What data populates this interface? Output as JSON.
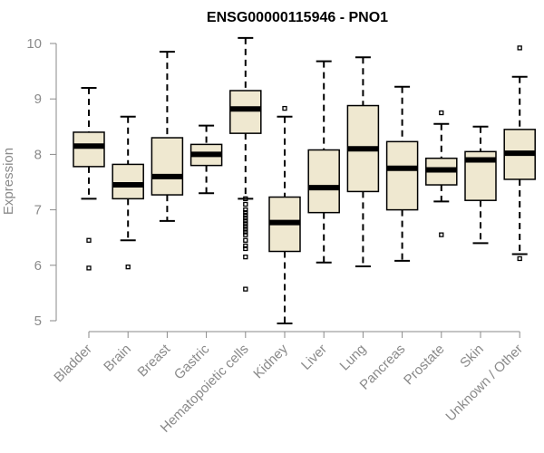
{
  "chart_data": {
    "type": "boxplot",
    "title": "ENSG00000115946 - PNO1",
    "xlabel": "",
    "ylabel": "Expression",
    "ylim": [
      5,
      10
    ],
    "yticks": [
      5,
      6,
      7,
      8,
      9,
      10
    ],
    "grid": false,
    "colors": {
      "box_fill": "#efe8d0",
      "stroke": "#000000",
      "axis": "#8a8a8a"
    },
    "categories": [
      "Bladder",
      "Brain",
      "Breast",
      "Gastric",
      "Hematopoietic cells",
      "Kidney",
      "Liver",
      "Lung",
      "Pancreas",
      "Prostate",
      "Skin",
      "Unknown / Other"
    ],
    "boxes": [
      {
        "name": "Bladder",
        "whisker_low": 7.2,
        "q1": 7.78,
        "median": 8.15,
        "q3": 8.4,
        "whisker_high": 9.2,
        "outliers": [
          6.45,
          5.95
        ]
      },
      {
        "name": "Brain",
        "whisker_low": 6.45,
        "q1": 7.2,
        "median": 7.45,
        "q3": 7.82,
        "whisker_high": 8.68,
        "outliers": [
          5.97
        ]
      },
      {
        "name": "Breast",
        "whisker_low": 6.8,
        "q1": 7.27,
        "median": 7.6,
        "q3": 8.3,
        "whisker_high": 9.85,
        "outliers": []
      },
      {
        "name": "Gastric",
        "whisker_low": 7.3,
        "q1": 7.8,
        "median": 8.0,
        "q3": 8.18,
        "whisker_high": 8.52,
        "outliers": []
      },
      {
        "name": "Hematopoietic cells",
        "whisker_low": 7.2,
        "q1": 8.38,
        "median": 8.82,
        "q3": 9.15,
        "whisker_high": 10.1,
        "outliers": [
          7.2,
          7.1,
          7.0,
          6.95,
          6.9,
          6.85,
          6.8,
          6.75,
          6.7,
          6.65,
          6.6,
          6.55,
          6.45,
          6.35,
          6.3,
          6.15,
          5.57
        ]
      },
      {
        "name": "Kidney",
        "whisker_low": 4.95,
        "q1": 6.25,
        "median": 6.77,
        "q3": 7.23,
        "whisker_high": 8.68,
        "outliers": [
          8.83
        ]
      },
      {
        "name": "Liver",
        "whisker_low": 6.05,
        "q1": 6.95,
        "median": 7.4,
        "q3": 8.08,
        "whisker_high": 9.68,
        "outliers": []
      },
      {
        "name": "Lung",
        "whisker_low": 5.98,
        "q1": 7.33,
        "median": 8.1,
        "q3": 8.88,
        "whisker_high": 9.75,
        "outliers": []
      },
      {
        "name": "Pancreas",
        "whisker_low": 6.08,
        "q1": 7.0,
        "median": 7.75,
        "q3": 8.23,
        "whisker_high": 9.22,
        "outliers": []
      },
      {
        "name": "Prostate",
        "whisker_low": 7.15,
        "q1": 7.45,
        "median": 7.72,
        "q3": 7.93,
        "whisker_high": 8.55,
        "outliers": [
          8.75,
          6.55
        ]
      },
      {
        "name": "Skin",
        "whisker_low": 6.4,
        "q1": 7.17,
        "median": 7.9,
        "q3": 8.05,
        "whisker_high": 8.5,
        "outliers": []
      },
      {
        "name": "Unknown / Other",
        "whisker_low": 6.2,
        "q1": 7.55,
        "median": 8.02,
        "q3": 8.45,
        "whisker_high": 9.4,
        "outliers": [
          9.92,
          6.12
        ]
      }
    ]
  }
}
